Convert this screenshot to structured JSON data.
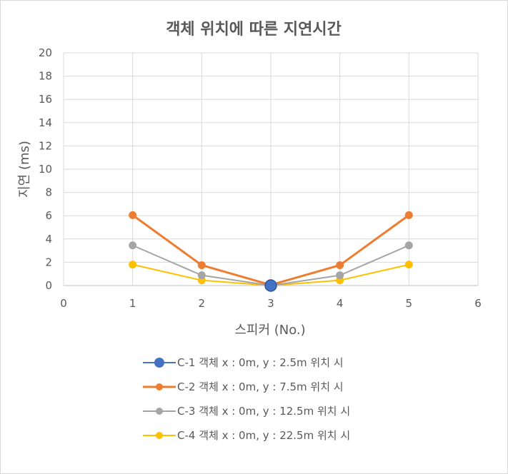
{
  "chart_data": {
    "type": "scatter",
    "title": "객체 위치에 따른 지연시간",
    "xlabel": "스피커 (No.)",
    "ylabel": "지연 (ms)",
    "xlim": [
      0,
      6
    ],
    "ylim": [
      0,
      20
    ],
    "xticks": [
      0,
      1,
      2,
      3,
      4,
      5,
      6
    ],
    "yticks": [
      0,
      2,
      4,
      6,
      8,
      10,
      12,
      14,
      16,
      18,
      20
    ],
    "grid": true,
    "legend_position": "bottom",
    "series": [
      {
        "name": "C-1 객체 x : 0m, y : 2.5m 위치 시",
        "color": "#4472C4",
        "x": [
          3
        ],
        "y": [
          0
        ]
      },
      {
        "name": "C-2 객체 x : 0m, y : 7.5m 위치 시",
        "color": "#ED7D31",
        "x": [
          1,
          2,
          3,
          4,
          5
        ],
        "y": [
          6.05,
          1.75,
          0.05,
          1.75,
          6.05
        ]
      },
      {
        "name": "C-3 객체 x : 0m, y : 12.5m 위치 시",
        "color": "#A5A5A5",
        "x": [
          1,
          2,
          3,
          4,
          5
        ],
        "y": [
          3.45,
          0.88,
          0,
          0.88,
          3.45
        ]
      },
      {
        "name": "C-4 객체 x : 0m, y : 22.5m 위치 시",
        "color": "#FFC000",
        "x": [
          1,
          2,
          3,
          4,
          5
        ],
        "y": [
          1.8,
          0.45,
          0,
          0.45,
          1.8
        ]
      }
    ]
  }
}
